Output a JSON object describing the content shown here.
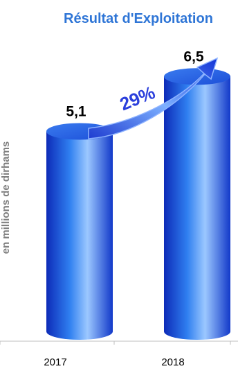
{
  "chart_data": {
    "type": "bar",
    "title": "Résultat d'Exploitation",
    "ylabel": "en millions de dirhams",
    "xlabel": "",
    "categories": [
      "2017",
      "2018"
    ],
    "values": [
      5.1,
      6.5
    ],
    "value_labels": [
      "5,1",
      "6,5"
    ],
    "annotation": "29%",
    "ylim": [
      0,
      7
    ],
    "grid": false,
    "colors": {
      "title": "#2E75D6",
      "bar_dark": "#0D2BB8",
      "bar_mid": "#2F7FF0",
      "bar_light": "#9CC8FF",
      "annotation": "#2B3FDC",
      "axis_text": "#7F7F7F"
    }
  }
}
